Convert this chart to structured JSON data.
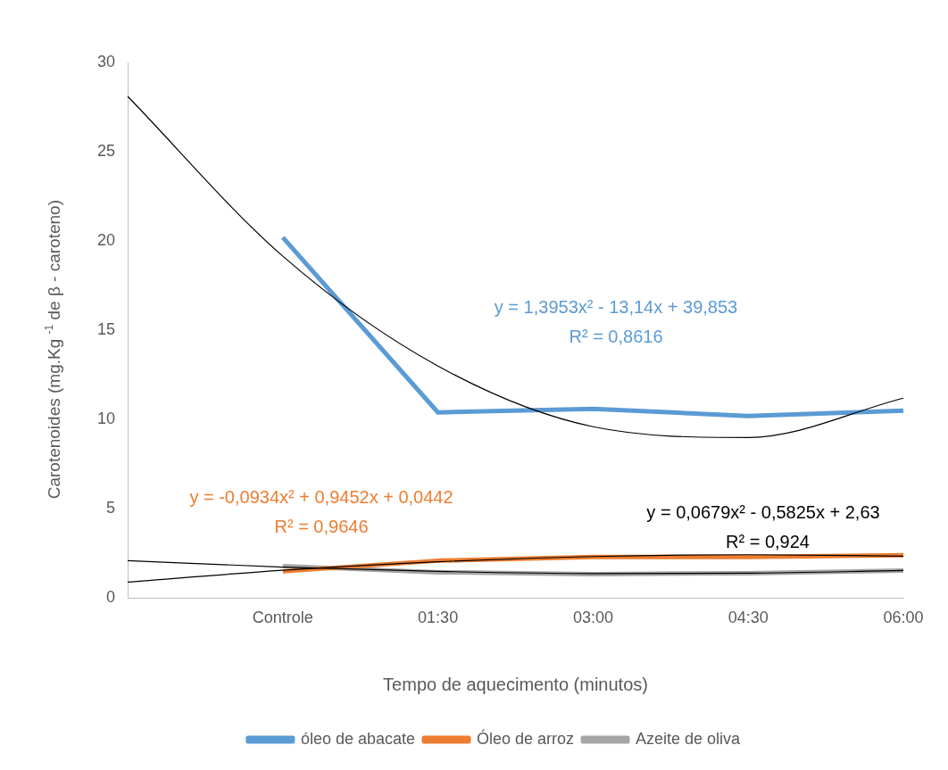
{
  "chart_data": {
    "type": "line",
    "xlabel": "Tempo de aquecimento (minutos)",
    "ylabel": "Carotenoides (mg.Kg $^{-1}$ de β - caroteno)",
    "categories": [
      null,
      "Controle",
      "01:30",
      "03:00",
      "04:30",
      "06:00"
    ],
    "series": [
      {
        "name": "óleo de abacate",
        "color": "#5b9bd5",
        "values": [
          null,
          20.2,
          10.4,
          10.6,
          10.2,
          10.5
        ]
      },
      {
        "name": "Óleo de arroz",
        "color": "#ed7d31",
        "values": [
          null,
          1.5,
          2.1,
          2.3,
          2.3,
          2.4
        ]
      },
      {
        "name": "Azeite de oliva",
        "color": "#a5a5a5",
        "values": [
          null,
          1.8,
          1.45,
          1.35,
          1.4,
          1.55
        ]
      },
      {
        "color": "#000000",
        "values": [
          28.1,
          19.15,
          13.0,
          9.6,
          9.0,
          11.2
        ]
      },
      {
        "color": "#000000",
        "values": [
          0.9,
          1.56,
          2.04,
          2.33,
          2.43,
          2.35
        ]
      },
      {
        "color": "#000000",
        "values": [
          2.1,
          1.74,
          1.5,
          1.38,
          1.4,
          1.55
        ]
      }
    ],
    "ylim": [
      0,
      30
    ],
    "yticks": [
      0,
      5,
      10,
      15,
      20,
      25,
      30
    ],
    "grid": false,
    "legend": "bottom",
    "marker": "none",
    "line_style": "solid",
    "annotations": [
      "y = 1,3953x² - 13,14x + 39,853",
      "R² = 0,8616",
      "y = -0,0934x² + 0,9452x + 0,0442",
      "R² = 0,9646",
      "y = 0,0679x² - 0,5825x + 2,63",
      "R² = 0,924"
    ]
  }
}
